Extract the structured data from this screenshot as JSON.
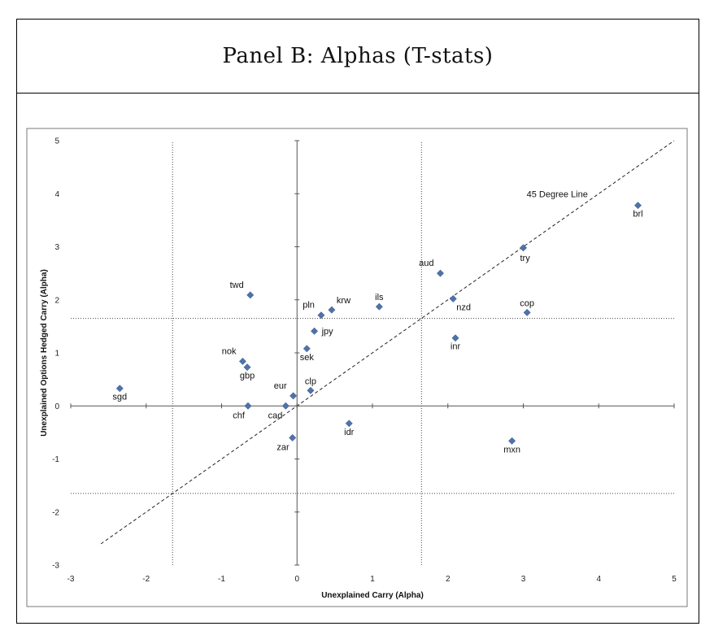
{
  "panel_title": "Panel B: Alphas (T-stats)",
  "chart_data": {
    "type": "scatter",
    "title": "",
    "xlabel": "Unexplained Carry (Alpha)",
    "ylabel": "Unexplained Options Hedged Carry (Alpha)",
    "xlim": [
      -3,
      5
    ],
    "ylim": [
      -3,
      5
    ],
    "x_ticks": [
      -3,
      -2,
      -1,
      0,
      1,
      2,
      3,
      4,
      5
    ],
    "y_ticks": [
      -3,
      -2,
      -1,
      0,
      1,
      2,
      3,
      4,
      5
    ],
    "x_tick_labels": [
      "-3",
      "-2",
      "-1",
      "0",
      "1",
      "2",
      "3",
      "4",
      "5"
    ],
    "y_tick_labels": [
      "-3",
      "-2",
      "-1",
      "0",
      "1",
      "2",
      "3",
      "4",
      "5"
    ],
    "marker_color": "#4F72A8",
    "reference_lines": {
      "diagonal_label": "45 Degree Line",
      "diagonal_range": [
        -2.6,
        5.0
      ],
      "dotted_vertical_x": [
        -1.65,
        1.65
      ],
      "dotted_horizontal_y": [
        -1.65,
        1.65
      ]
    },
    "points": [
      {
        "label": "brl",
        "x": 4.52,
        "y": 3.78,
        "lpos": "below"
      },
      {
        "label": "try",
        "x": 3.0,
        "y": 2.98,
        "lpos": "below-right"
      },
      {
        "label": "aud",
        "x": 1.9,
        "y": 2.5,
        "lpos": "above-left"
      },
      {
        "label": "nzd",
        "x": 2.07,
        "y": 2.02,
        "lpos": "right-below"
      },
      {
        "label": "cop",
        "x": 3.05,
        "y": 1.76,
        "lpos": "above"
      },
      {
        "label": "inr",
        "x": 2.1,
        "y": 1.28,
        "lpos": "below"
      },
      {
        "label": "mxn",
        "x": 2.85,
        "y": -0.66,
        "lpos": "below"
      },
      {
        "label": "twd",
        "x": -0.62,
        "y": 2.09,
        "lpos": "above-left"
      },
      {
        "label": "nok",
        "x": -0.72,
        "y": 0.84,
        "lpos": "above-left"
      },
      {
        "label": "gbp",
        "x": -0.66,
        "y": 0.73,
        "lpos": "below"
      },
      {
        "label": "chf",
        "x": -0.65,
        "y": 0.0,
        "lpos": "below-left"
      },
      {
        "label": "sgd",
        "x": -2.35,
        "y": 0.33,
        "lpos": "below"
      },
      {
        "label": "pln",
        "x": 0.32,
        "y": 1.71,
        "lpos": "above-left"
      },
      {
        "label": "krw",
        "x": 0.46,
        "y": 1.81,
        "lpos": "above-right"
      },
      {
        "label": "ils",
        "x": 1.09,
        "y": 1.87,
        "lpos": "above"
      },
      {
        "label": "jpy",
        "x": 0.23,
        "y": 1.41,
        "lpos": "right"
      },
      {
        "label": "sek",
        "x": 0.13,
        "y": 1.08,
        "lpos": "below"
      },
      {
        "label": "eur",
        "x": -0.05,
        "y": 0.19,
        "lpos": "above-left"
      },
      {
        "label": "clp",
        "x": 0.18,
        "y": 0.29,
        "lpos": "above"
      },
      {
        "label": "cad",
        "x": -0.15,
        "y": 0.0,
        "lpos": "below-left"
      },
      {
        "label": "zar",
        "x": -0.06,
        "y": -0.6,
        "lpos": "below-left"
      },
      {
        "label": "idr",
        "x": 0.69,
        "y": -0.33,
        "lpos": "below"
      }
    ]
  }
}
